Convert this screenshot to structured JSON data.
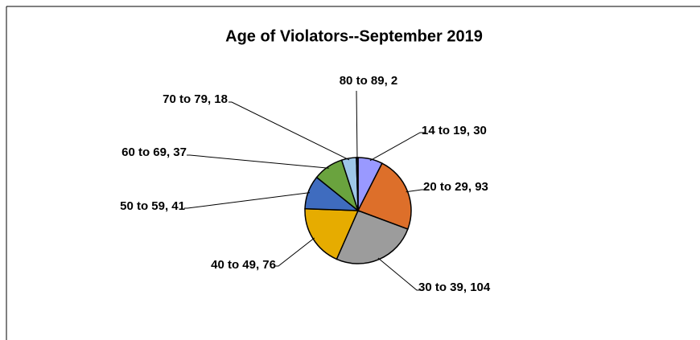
{
  "chart_data": {
    "type": "pie",
    "title": "Age of Violators--September 2019",
    "values": [
      30,
      93,
      104,
      76,
      41,
      37,
      18,
      2
    ],
    "value_labels": [
      "14 to 19, 30",
      "20 to 29, 93",
      "30 to 39, 104",
      "40 to 49, 76",
      "50 to 59, 41",
      "60 to 69, 37",
      "70 to 79, 18",
      "80 to 89, 2"
    ],
    "colors": [
      "#9999ff",
      "#dd6f2a",
      "#9c9c9c",
      "#e6ac00",
      "#3f6cbf",
      "#6aa33e",
      "#9ec6e8",
      "#1f3864"
    ]
  }
}
